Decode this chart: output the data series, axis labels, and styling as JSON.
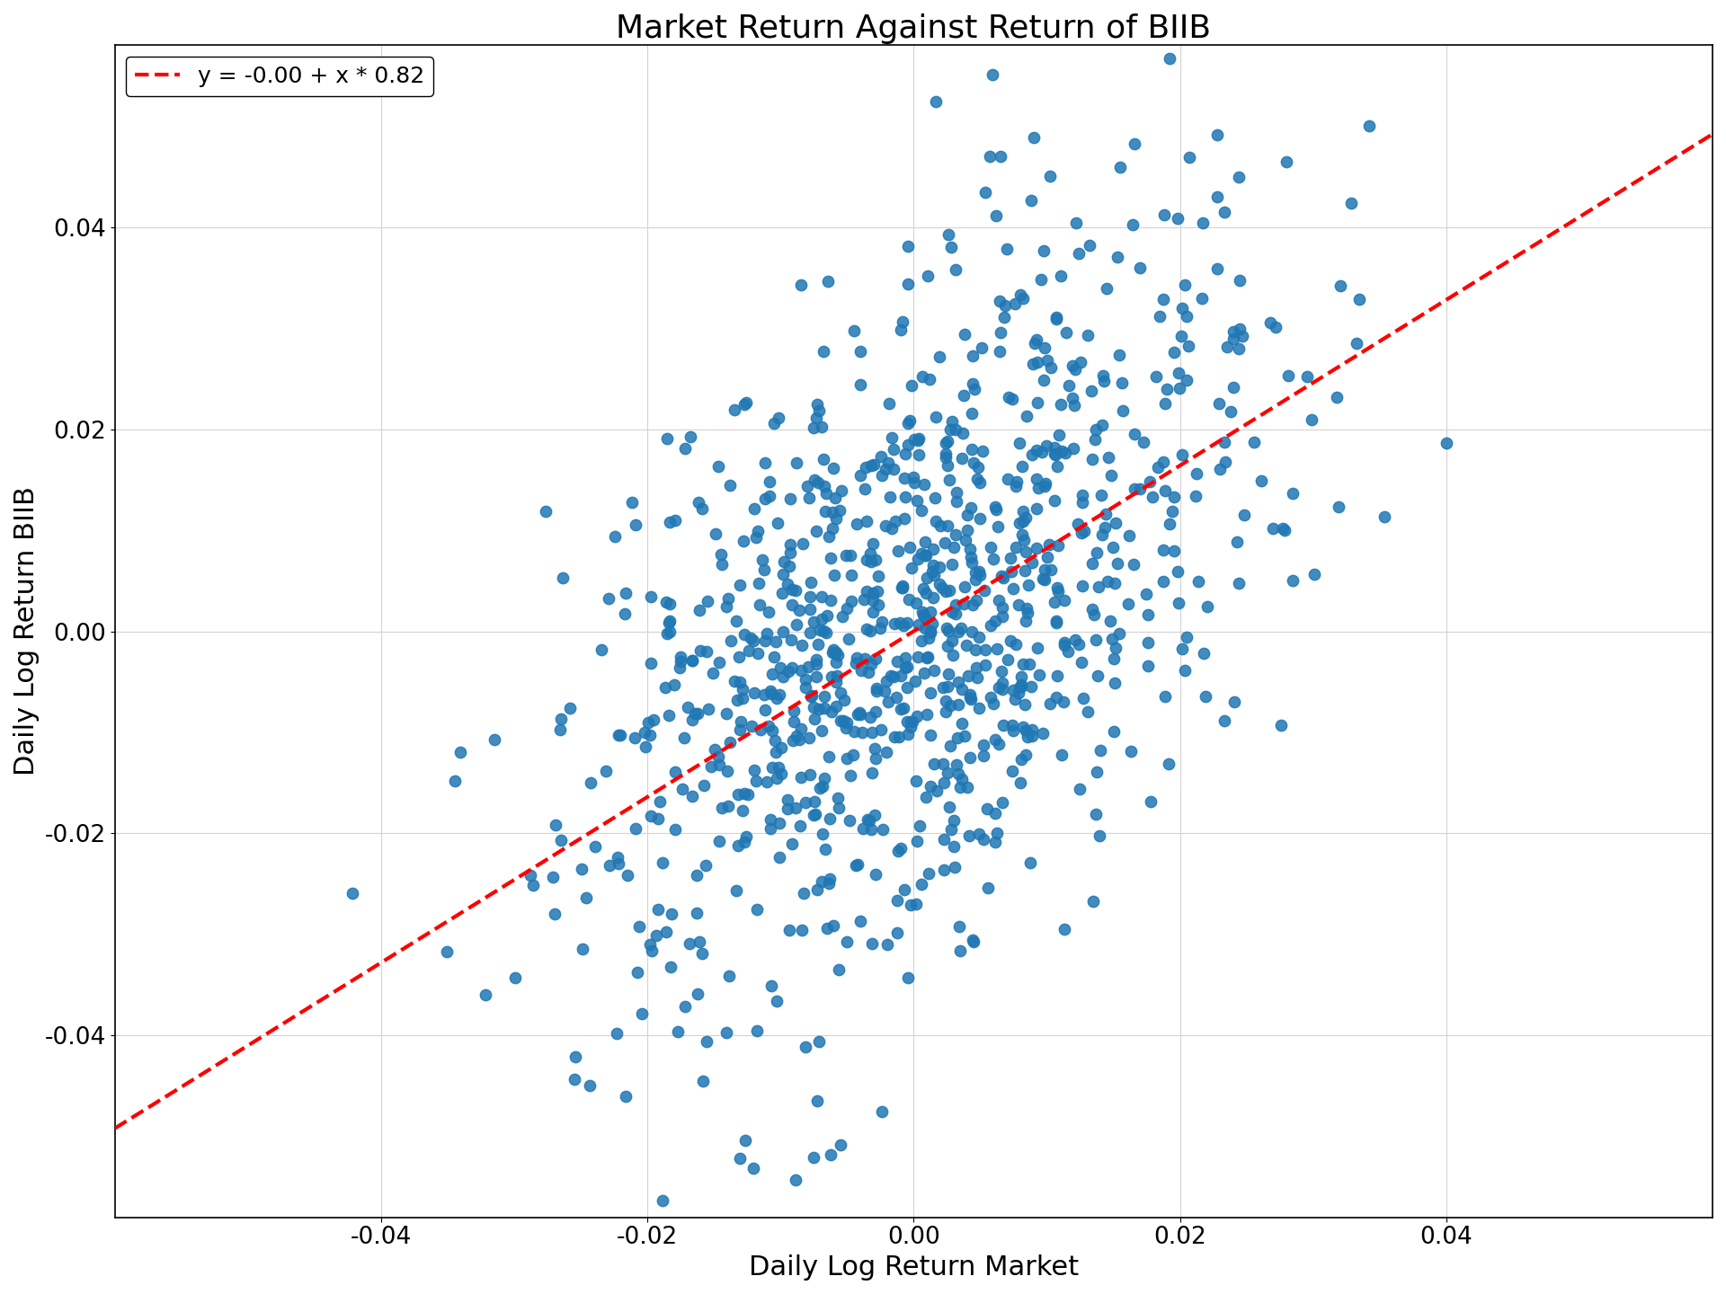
{
  "title": "Market Return Against Return of BIIB",
  "xlabel": "Daily Log Return Market",
  "ylabel": "Daily Log Return BIIB",
  "legend_label": "y = -0.00 + x * 0.82",
  "intercept": -0.0,
  "slope": 0.82,
  "scatter_color": "#1f77b4",
  "line_color": "red",
  "line_style": "--",
  "xlim": [
    -0.06,
    0.06
  ],
  "ylim": [
    -0.058,
    0.058
  ],
  "xticks": [
    -0.04,
    -0.02,
    0.0,
    0.02,
    0.04
  ],
  "yticks": [
    -0.04,
    -0.02,
    0.0,
    0.02,
    0.04
  ],
  "n_points": 1000,
  "random_seed": 42,
  "market_std": 0.013,
  "residual_std": 0.016,
  "dot_size": 80,
  "title_fontsize": 26,
  "label_fontsize": 22,
  "tick_fontsize": 19,
  "legend_fontsize": 18,
  "figsize": [
    19.2,
    14.4
  ],
  "dpi": 100
}
